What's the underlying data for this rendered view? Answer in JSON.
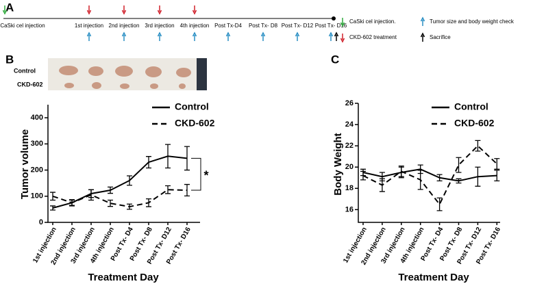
{
  "panel_labels": [
    "A",
    "B",
    "C"
  ],
  "timeline": {
    "steps": [
      "CaSki cel injection",
      "1st injection",
      "2nd injection",
      "3rd injection",
      "4th injection",
      "Post Tx-D4",
      "Post Tx- D8",
      "Post Tx- D12",
      "Post Tx- D16"
    ],
    "legend": [
      {
        "label": "CaSki cel injection.",
        "color": "#2eaa3c"
      },
      {
        "label": "Tumor size and body weight check",
        "color": "#2a8fc4"
      },
      {
        "label": "CKD-602 treatment",
        "color": "#d0202a"
      },
      {
        "label": "Sacrifice",
        "color": "#000000"
      }
    ]
  },
  "photo": {
    "rows": [
      "Control",
      "CKD-602"
    ]
  },
  "chart_data": [
    {
      "type": "line",
      "ylabel": "Tumor volume",
      "xlabel": "Treatment Day",
      "annotation": "*",
      "categories": [
        "1st injection",
        "2nd injection",
        "3rd injection",
        "4th injection",
        "Post Tx- D4",
        "Post Tx- D8",
        "Post Tx- D12",
        "Post Tx- D16"
      ],
      "series": [
        {
          "name": "Control",
          "color": "#000000",
          "linestyle": "solid",
          "values": [
            55,
            75,
            110,
            123,
            160,
            230,
            253,
            245
          ],
          "errors": [
            8,
            10,
            15,
            12,
            18,
            22,
            45,
            45
          ]
        },
        {
          "name": "CKD-602",
          "color": "#000000",
          "linestyle": "dashed",
          "values": [
            100,
            75,
            105,
            73,
            60,
            75,
            125,
            123
          ],
          "errors": [
            15,
            12,
            20,
            12,
            10,
            15,
            15,
            22
          ]
        }
      ],
      "ylim": [
        0,
        450
      ],
      "yticks": [
        0,
        100,
        200,
        300,
        400
      ],
      "legend": "upper right"
    },
    {
      "type": "line",
      "ylabel": "Body Weight",
      "xlabel": "Treatment Day",
      "categories": [
        "1st injection",
        "2nd injection",
        "3rd injection",
        "4th injection",
        "Post Tx- D4",
        "Post Tx- D8",
        "Post Tx- D12",
        "Post Tx- D16"
      ],
      "series": [
        {
          "name": "Control",
          "color": "#000000",
          "linestyle": "solid",
          "values": [
            19.5,
            19.1,
            19.5,
            19.8,
            19.0,
            18.7,
            19.1,
            19.2
          ],
          "errors": [
            0.3,
            0.4,
            0.5,
            0.4,
            0.3,
            0.2,
            0.9,
            0.5
          ]
        },
        {
          "name": "CKD-602",
          "color": "#000000",
          "linestyle": "dashed",
          "values": [
            19.2,
            18.3,
            19.6,
            18.8,
            16.5,
            20.2,
            22.0,
            20.3
          ],
          "errors": [
            0.4,
            0.6,
            0.5,
            0.9,
            0.6,
            0.7,
            0.5,
            0.5
          ]
        }
      ],
      "ylim": [
        14.8,
        26
      ],
      "yticks": [
        16,
        18,
        20,
        22,
        24,
        26
      ],
      "legend": "upper right"
    }
  ]
}
